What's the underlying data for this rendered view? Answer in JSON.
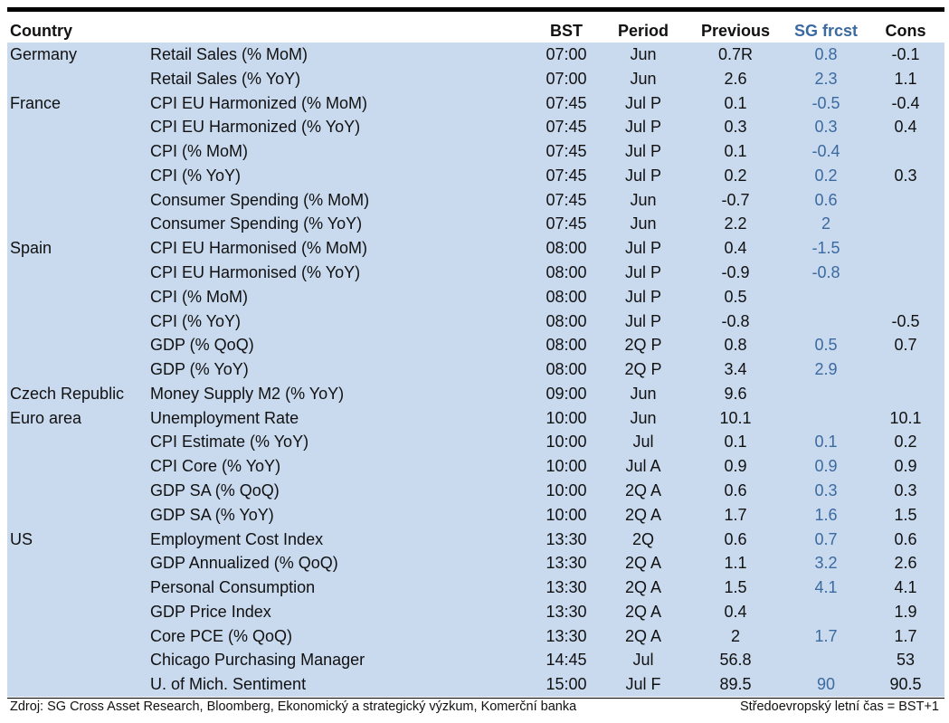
{
  "header": {
    "country": "Country",
    "bst": "BST",
    "period": "Period",
    "previous": "Previous",
    "sg": "SG frcst",
    "cons": "Cons"
  },
  "rows": [
    {
      "country": "Germany",
      "indicator": "Retail Sales (% MoM)",
      "bst": "07:00",
      "period": "Jun",
      "previous": "0.7R",
      "sg": "0.8",
      "cons": "-0.1"
    },
    {
      "country": "",
      "indicator": "Retail Sales (% YoY)",
      "bst": "07:00",
      "period": "Jun",
      "previous": "2.6",
      "sg": "2.3",
      "cons": "1.1"
    },
    {
      "country": "France",
      "indicator": "CPI EU Harmonized (% MoM)",
      "bst": "07:45",
      "period": "Jul P",
      "previous": "0.1",
      "sg": "-0.5",
      "cons": "-0.4"
    },
    {
      "country": "",
      "indicator": "CPI EU Harmonized (% YoY)",
      "bst": "07:45",
      "period": "Jul P",
      "previous": "0.3",
      "sg": "0.3",
      "cons": "0.4"
    },
    {
      "country": "",
      "indicator": "CPI (% MoM)",
      "bst": "07:45",
      "period": "Jul P",
      "previous": "0.1",
      "sg": "-0.4",
      "cons": ""
    },
    {
      "country": "",
      "indicator": "CPI (% YoY)",
      "bst": "07:45",
      "period": "Jul P",
      "previous": "0.2",
      "sg": "0.2",
      "cons": "0.3"
    },
    {
      "country": "",
      "indicator": "Consumer Spending (% MoM)",
      "bst": "07:45",
      "period": "Jun",
      "previous": "-0.7",
      "sg": "0.6",
      "cons": ""
    },
    {
      "country": "",
      "indicator": "Consumer Spending (% YoY)",
      "bst": "07:45",
      "period": "Jun",
      "previous": "2.2",
      "sg": "2",
      "cons": ""
    },
    {
      "country": "Spain",
      "indicator": "CPI EU Harmonised (% MoM)",
      "bst": "08:00",
      "period": "Jul P",
      "previous": "0.4",
      "sg": "-1.5",
      "cons": ""
    },
    {
      "country": "",
      "indicator": "CPI EU Harmonised (% YoY)",
      "bst": "08:00",
      "period": "Jul P",
      "previous": "-0.9",
      "sg": "-0.8",
      "cons": ""
    },
    {
      "country": "",
      "indicator": "CPI (% MoM)",
      "bst": "08:00",
      "period": "Jul P",
      "previous": "0.5",
      "sg": "",
      "cons": ""
    },
    {
      "country": "",
      "indicator": "CPI (% YoY)",
      "bst": "08:00",
      "period": "Jul P",
      "previous": "-0.8",
      "sg": "",
      "cons": "-0.5"
    },
    {
      "country": "",
      "indicator": "GDP (% QoQ)",
      "bst": "08:00",
      "period": "2Q P",
      "previous": "0.8",
      "sg": "0.5",
      "cons": "0.7"
    },
    {
      "country": "",
      "indicator": "GDP (% YoY)",
      "bst": "08:00",
      "period": "2Q P",
      "previous": "3.4",
      "sg": "2.9",
      "cons": ""
    },
    {
      "country": "Czech Republic",
      "indicator": "Money Supply M2 (% YoY)",
      "bst": "09:00",
      "period": "Jun",
      "previous": "9.6",
      "sg": "",
      "cons": ""
    },
    {
      "country": "Euro area",
      "indicator": "Unemployment Rate",
      "bst": "10:00",
      "period": "Jun",
      "previous": "10.1",
      "sg": "",
      "cons": "10.1"
    },
    {
      "country": "",
      "indicator": "CPI Estimate (% YoY)",
      "bst": "10:00",
      "period": "Jul",
      "previous": "0.1",
      "sg": "0.1",
      "cons": "0.2"
    },
    {
      "country": "",
      "indicator": "CPI Core (% YoY)",
      "bst": "10:00",
      "period": "Jul A",
      "previous": "0.9",
      "sg": "0.9",
      "cons": "0.9"
    },
    {
      "country": "",
      "indicator": "GDP SA (% QoQ)",
      "bst": "10:00",
      "period": "2Q A",
      "previous": "0.6",
      "sg": "0.3",
      "cons": "0.3"
    },
    {
      "country": "",
      "indicator": "GDP SA (% YoY)",
      "bst": "10:00",
      "period": "2Q A",
      "previous": "1.7",
      "sg": "1.6",
      "cons": "1.5"
    },
    {
      "country": "US",
      "indicator": "Employment Cost Index",
      "bst": "13:30",
      "period": "2Q",
      "previous": "0.6",
      "sg": "0.7",
      "cons": "0.6"
    },
    {
      "country": "",
      "indicator": "GDP Annualized (% QoQ)",
      "bst": "13:30",
      "period": "2Q A",
      "previous": "1.1",
      "sg": "3.2",
      "cons": "2.6"
    },
    {
      "country": "",
      "indicator": "Personal Consumption",
      "bst": "13:30",
      "period": "2Q A",
      "previous": "1.5",
      "sg": "4.1",
      "cons": "4.1"
    },
    {
      "country": "",
      "indicator": "GDP Price Index",
      "bst": "13:30",
      "period": "2Q A",
      "previous": "0.4",
      "sg": "",
      "cons": "1.9"
    },
    {
      "country": "",
      "indicator": "Core PCE (% QoQ)",
      "bst": "13:30",
      "period": "2Q A",
      "previous": "2",
      "sg": "1.7",
      "cons": "1.7"
    },
    {
      "country": "",
      "indicator": "Chicago Purchasing Manager",
      "bst": "14:45",
      "period": "Jul",
      "previous": "56.8",
      "sg": "",
      "cons": "53"
    },
    {
      "country": "",
      "indicator": "U. of Mich. Sentiment",
      "bst": "15:00",
      "period": "Jul F",
      "previous": "89.5",
      "sg": "90",
      "cons": "90.5"
    }
  ],
  "footer": {
    "source": "Zdroj: SG Cross Asset Research, Bloomberg, Ekonomický a strategický výzkum, Komerční banka",
    "note": "Středoevropský letní čas = BST+1"
  }
}
